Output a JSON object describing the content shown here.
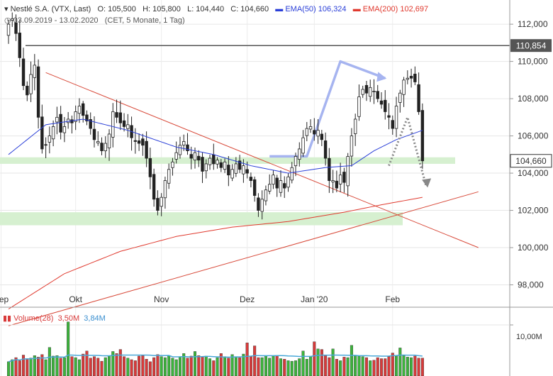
{
  "header": {
    "title": "Nestlé S.A. (VTX, Last)",
    "ohlc": {
      "o": "O: 105,500",
      "h": "H: 105,800",
      "l": "L: 104,440",
      "c": "C: 104,660"
    },
    "ema50_label": "EMA(50)",
    "ema50_value": "106,324",
    "ema200_label": "EMA(200)",
    "ema200_value": "102,697",
    "range": "03.09.2019 - 13.02.2020",
    "meta": "(CET, 5 Monate, 1 Tag)"
  },
  "volume_header": {
    "label": "Volume(28)",
    "value1": "3,50M",
    "value2": "3,84M",
    "tick": "10,00M"
  },
  "colors": {
    "up": "#3cb43c",
    "down": "#d83a3a",
    "ema50": "#2a3fd8",
    "ema200": "#e0392e",
    "trend": "#d84a3a",
    "zone": "#d6f0d0",
    "pattern": "#a6b4f0",
    "resistance": "#555555",
    "vol_ma": "#4aa8d8",
    "arrow": "#888888"
  },
  "chart_data": {
    "type": "candlestick",
    "x_labels": [
      "Sep",
      "Okt",
      "Nov",
      "Dez",
      "Jan '20",
      "Feb"
    ],
    "y_ticks": [
      98,
      100,
      102,
      104,
      106,
      108,
      110,
      112
    ],
    "y_tick_labels": [
      "98,000",
      "100,000",
      "102,000",
      "104,000",
      "106,000",
      "108,000",
      "110,000",
      "112,000"
    ],
    "ylim": [
      96.8,
      113.3
    ],
    "resistance": {
      "value": 110.854,
      "label": "110,854"
    },
    "last_price": {
      "value": 104.66,
      "label": "104,660"
    },
    "support_zones": [
      {
        "from": 104.5,
        "to": 104.85
      },
      {
        "from": 101.2,
        "to": 101.9
      }
    ],
    "closes": [
      112.0,
      112.3,
      111.5,
      110.2,
      108.7,
      108.2,
      109.3,
      109.8,
      107.0,
      105.3,
      105.5,
      106.0,
      106.5,
      107.0,
      106.2,
      106.5,
      106.9,
      106.7,
      107.3,
      107.6,
      107.1,
      106.8,
      106.4,
      105.8,
      105.7,
      105.2,
      105.6,
      106.1,
      107.3,
      107.0,
      106.7,
      106.5,
      106.6,
      105.9,
      105.7,
      105.6,
      105.5,
      104.8,
      103.8,
      102.6,
      102.0,
      102.7,
      103.6,
      104.2,
      104.6,
      105.1,
      105.5,
      105.7,
      105.2,
      104.8,
      105.1,
      104.7,
      104.1,
      104.5,
      104.8,
      104.5,
      104.7,
      104.3,
      104.6,
      103.9,
      104.2,
      104.5,
      104.2,
      104.4,
      104.0,
      103.6,
      102.8,
      102.0,
      102.6,
      103.1,
      103.4,
      103.9,
      103.2,
      103.6,
      103.2,
      103.8,
      104.3,
      104.9,
      105.3,
      105.9,
      106.4,
      106.5,
      106.1,
      106.3,
      105.8,
      104.8,
      103.6,
      103.6,
      103.2,
      103.9,
      103.5,
      104.9,
      106.0,
      106.9,
      108.1,
      108.5,
      108.3,
      108.6,
      108.4,
      108.0,
      107.7,
      107.3,
      107.0,
      106.4,
      107.6,
      108.3,
      109.0,
      109.1,
      109.1,
      108.9,
      107.3,
      104.66
    ],
    "volumes": [
      2.8,
      3.2,
      3.6,
      3.0,
      4.1,
      3.4,
      3.5,
      4.0,
      3.7,
      4.2,
      3.2,
      5.6,
      3.9,
      4.0,
      3.5,
      3.6,
      10.6,
      3.8,
      3.6,
      3.2,
      4.3,
      4.9,
      3.5,
      3.8,
      3.5,
      2.9,
      3.6,
      4.0,
      4.8,
      4.4,
      5.2,
      3.8,
      3.5,
      3.2,
      3.0,
      3.9,
      4.0,
      3.3,
      2.8,
      3.6,
      4.2,
      3.8,
      3.6,
      4.0,
      3.5,
      3.2,
      3.8,
      4.4,
      3.5,
      3.9,
      4.8,
      4.0,
      3.7,
      3.9,
      3.4,
      3.0,
      3.6,
      4.4,
      3.8,
      3.5,
      4.2,
      3.8,
      3.6,
      4.3,
      6.5,
      3.9,
      5.9,
      3.6,
      3.6,
      4.0,
      3.5,
      3.9,
      4.0,
      3.4,
      3.3,
      3.0,
      2.9,
      3.0,
      3.4,
      4.9,
      3.3,
      3.8,
      6.7,
      5.3,
      5.2,
      4.0,
      3.6,
      5.3,
      3.3,
      3.0,
      3.7,
      3.6,
      6.0,
      4.0,
      3.9,
      3.8,
      3.6,
      3.0,
      3.1,
      3.6,
      3.4,
      3.4,
      3.8,
      4.5,
      3.9,
      5.5,
      4.0,
      3.7,
      3.6,
      3.9,
      3.5,
      3.5
    ],
    "ema50_anchors": [
      [
        0,
        105.0
      ],
      [
        10,
        106.6
      ],
      [
        20,
        106.9
      ],
      [
        32,
        106.3
      ],
      [
        45,
        105.4
      ],
      [
        55,
        105.0
      ],
      [
        65,
        104.4
      ],
      [
        75,
        104.0
      ],
      [
        85,
        104.3
      ],
      [
        92,
        104.4
      ],
      [
        98,
        105.2
      ],
      [
        104,
        105.8
      ],
      [
        111,
        106.3
      ]
    ],
    "ema200_anchors": [
      [
        0,
        96.7
      ],
      [
        15,
        98.6
      ],
      [
        30,
        99.8
      ],
      [
        45,
        100.6
      ],
      [
        60,
        101.1
      ],
      [
        75,
        101.4
      ],
      [
        90,
        101.9
      ],
      [
        100,
        102.3
      ],
      [
        111,
        102.7
      ]
    ],
    "trendlines": [
      {
        "from": [
          10,
          109.4
        ],
        "to": [
          126,
          100.0
        ]
      },
      {
        "from": [
          0,
          95.8
        ],
        "to": [
          126,
          103.0
        ]
      }
    ],
    "pattern": {
      "points": [
        [
          70,
          104.9
        ],
        [
          80,
          104.9
        ],
        [
          89,
          110.0
        ],
        [
          101,
          109.1
        ]
      ]
    },
    "forecast": {
      "points": [
        [
          102,
          104.4
        ],
        [
          107,
          107.0
        ],
        [
          112,
          103.3
        ]
      ]
    }
  }
}
